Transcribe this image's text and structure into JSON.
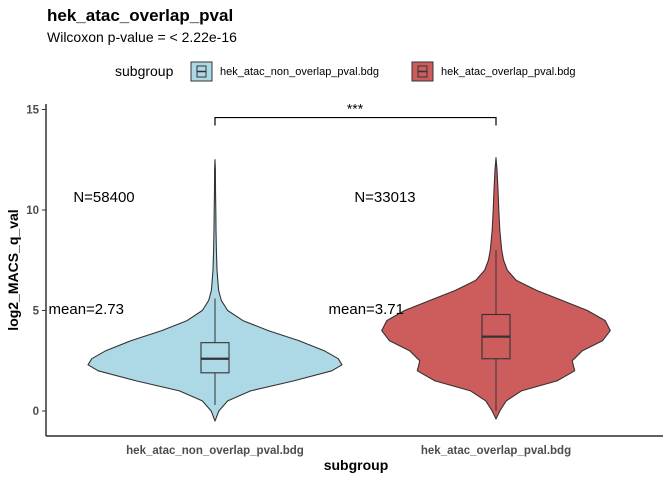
{
  "chart_data": {
    "type": "violin",
    "title": "hek_atac_overlap_pval",
    "subtitle": "Wilcoxon p-value = < 2.22e-16",
    "xlabel": "subgroup",
    "ylabel": "log2_MACS_q_val",
    "ylim": [
      -1.2,
      15.3
    ],
    "yticks": [
      0,
      5,
      10,
      15
    ],
    "legend": {
      "title": "subgroup",
      "position": "top",
      "entries": [
        "hek_atac_non_overlap_pval.bdg",
        "hek_atac_overlap_pval.bdg"
      ]
    },
    "significance": {
      "label": "***",
      "y": 14.6,
      "between": [
        0,
        1
      ]
    },
    "categories": [
      "hek_atac_non_overlap_pval.bdg",
      "hek_atac_overlap_pval.bdg"
    ],
    "series": [
      {
        "name": "hek_atac_non_overlap_pval.bdg",
        "color": "#add8e6",
        "n_label": "N=58400",
        "mean_label": "mean=2.73",
        "mean": 2.73,
        "box": {
          "lower_whisker": 0.3,
          "q1": 1.9,
          "median": 2.6,
          "q3": 3.4,
          "upper_whisker": 5.6
        },
        "density": [
          [
            -0.5,
            0.0
          ],
          [
            0.0,
            0.03
          ],
          [
            0.5,
            0.1
          ],
          [
            1.0,
            0.28
          ],
          [
            1.5,
            0.62
          ],
          [
            2.0,
            0.92
          ],
          [
            2.3,
            1.0
          ],
          [
            2.6,
            0.97
          ],
          [
            3.0,
            0.86
          ],
          [
            3.5,
            0.66
          ],
          [
            4.0,
            0.42
          ],
          [
            4.5,
            0.22
          ],
          [
            5.0,
            0.1
          ],
          [
            5.5,
            0.05
          ],
          [
            6.0,
            0.028
          ],
          [
            7.0,
            0.016
          ],
          [
            8.0,
            0.011
          ],
          [
            9.0,
            0.008
          ],
          [
            10.0,
            0.006
          ],
          [
            11.0,
            0.004
          ],
          [
            12.0,
            0.003
          ],
          [
            12.5,
            0.0
          ]
        ]
      },
      {
        "name": "hek_atac_overlap_pval.bdg",
        "color": "#cd5c5c",
        "n_label": "N=33013",
        "mean_label": "mean=3.71",
        "mean": 3.71,
        "box": {
          "lower_whisker": 0.0,
          "q1": 2.6,
          "median": 3.7,
          "q3": 4.8,
          "upper_whisker": 8.0
        },
        "density": [
          [
            -0.4,
            0.0
          ],
          [
            0.0,
            0.03
          ],
          [
            0.5,
            0.08
          ],
          [
            1.0,
            0.2
          ],
          [
            1.5,
            0.48
          ],
          [
            2.0,
            0.62
          ],
          [
            2.5,
            0.6
          ],
          [
            3.0,
            0.68
          ],
          [
            3.5,
            0.84
          ],
          [
            4.0,
            0.9
          ],
          [
            4.5,
            0.86
          ],
          [
            5.0,
            0.72
          ],
          [
            5.5,
            0.52
          ],
          [
            6.0,
            0.32
          ],
          [
            6.5,
            0.16
          ],
          [
            7.0,
            0.09
          ],
          [
            7.5,
            0.06
          ],
          [
            8.0,
            0.045
          ],
          [
            9.0,
            0.03
          ],
          [
            10.0,
            0.022
          ],
          [
            11.0,
            0.016
          ],
          [
            12.0,
            0.008
          ],
          [
            12.6,
            0.0
          ]
        ]
      }
    ]
  }
}
